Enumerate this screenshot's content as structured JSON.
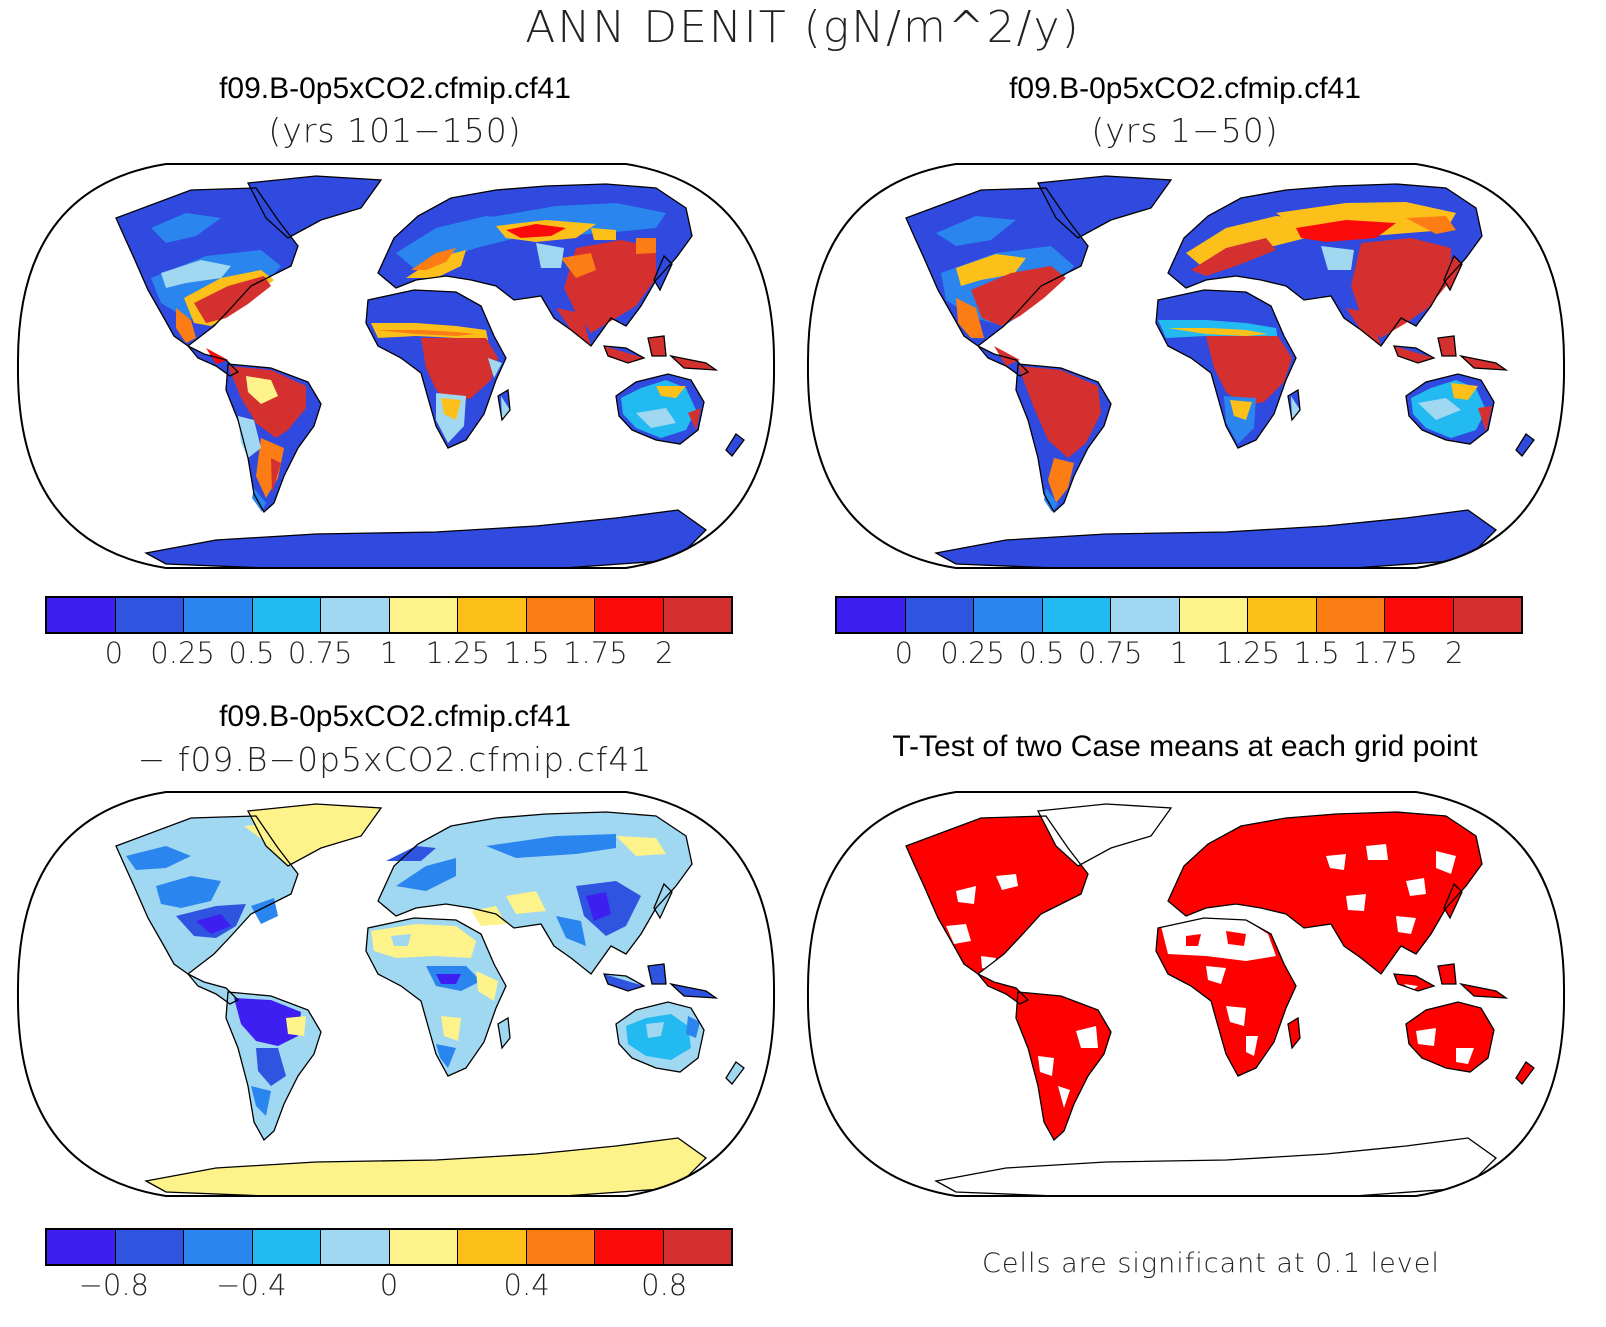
{
  "figure": {
    "title": "ANN DENIT (gN/m^2/y)"
  },
  "colors": {
    "abs_scale": [
      "#3e1ff2",
      "#2f55e0",
      "#2a86ee",
      "#22baf0",
      "#a0d8f2",
      "#fdf38a",
      "#fdc01a",
      "#fb7d14",
      "#fb0a0a",
      "#d43030"
    ],
    "diff_scale": [
      "#3e1ff2",
      "#2f55e0",
      "#2a86ee",
      "#22baf0",
      "#a0d8f2",
      "#fdf38a",
      "#fdc01a",
      "#fb7d14",
      "#fb0a0a",
      "#d43030"
    ],
    "significant": "#ff0000",
    "ocean": "#ffffff"
  },
  "panels": [
    {
      "id": "top-left",
      "title": "f09.B-0p5xCO2.cfmip.cf41",
      "subtitle": "(yrs 101−150)",
      "colorbar_ticks": [
        "0",
        "0.25",
        "0.5",
        "0.75",
        "1",
        "1.25",
        "1.5",
        "1.75",
        "2"
      ]
    },
    {
      "id": "top-right",
      "title": "f09.B-0p5xCO2.cfmip.cf41",
      "subtitle": "(yrs 1−50)",
      "colorbar_ticks": [
        "0",
        "0.25",
        "0.5",
        "0.75",
        "1",
        "1.25",
        "1.5",
        "1.75",
        "2"
      ]
    },
    {
      "id": "bottom-left",
      "title": "f09.B-0p5xCO2.cfmip.cf41",
      "subtitle": "− f09.B−0p5xCO2.cfmip.cf41",
      "colorbar_ticks": [
        "−0.8",
        "−0.4",
        "0",
        "0.4",
        "0.8"
      ]
    },
    {
      "id": "bottom-right",
      "title": "T-Test of two Case means at each grid point",
      "note": "Cells are significant at 0.1 level"
    }
  ]
}
